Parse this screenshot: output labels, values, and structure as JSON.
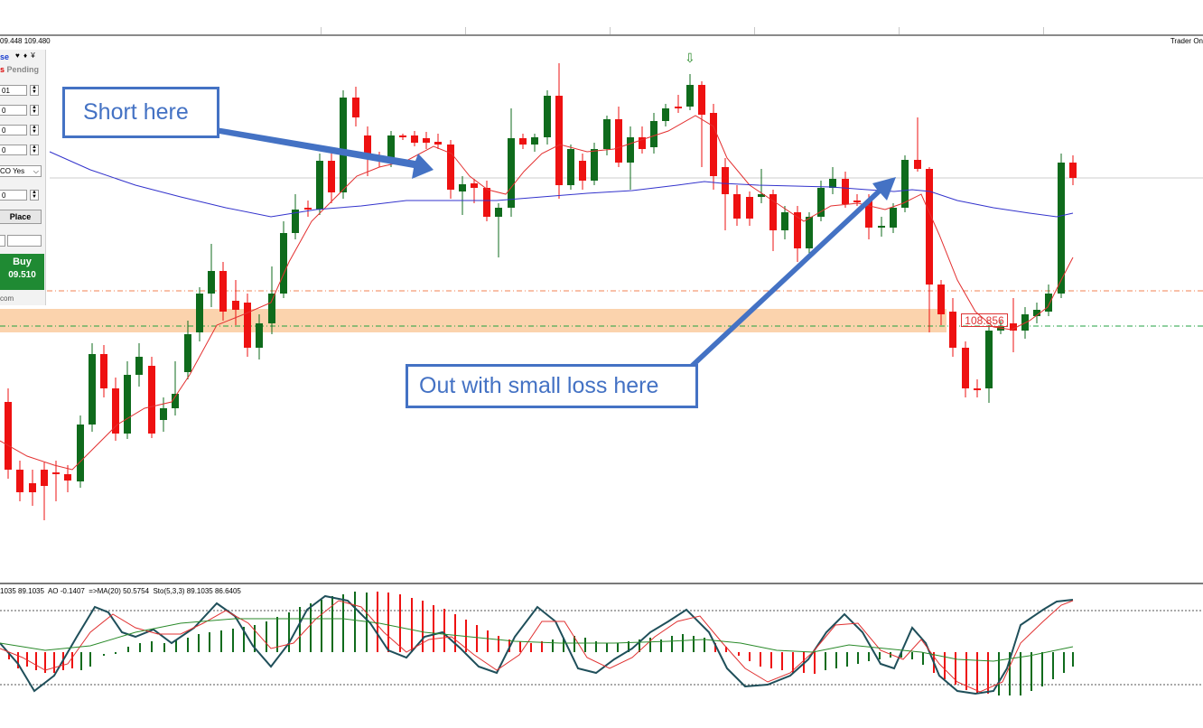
{
  "header": {
    "prices": "09.448 109.480",
    "trader_label": "Trader On"
  },
  "trade_panel": {
    "title_partial": "se",
    "arrows": "♥ ♦ ¥",
    "pending_prefix": "s",
    "pending_label": "Pending",
    "field_1": "01",
    "field_2": "0",
    "field_3": "0",
    "field_4": "0",
    "oco_select": "CO Yes",
    "field_5": "0",
    "place_label": "Place",
    "buy_label": "Buy",
    "buy_price": "09.510",
    "domain_suffix": "com"
  },
  "annotations": {
    "short_here": "Short here",
    "out_loss": "Out with small loss here",
    "level_price": "108.856",
    "signal_arrow": "⇩"
  },
  "indicator_panel": {
    "label": "1035 89.1035  AO -0.1407  =>MA(20) 50.5754  Sto(5,3,3) 89.1035 86.6405"
  },
  "colors": {
    "bull_candle": "#0f6b1c",
    "bear_candle": "#ee1111",
    "ma_fast": "#e33030",
    "ma_slow": "#3333cc",
    "callout_blue": "#4472c4",
    "zone_orange": "#fbd3ad"
  }
}
